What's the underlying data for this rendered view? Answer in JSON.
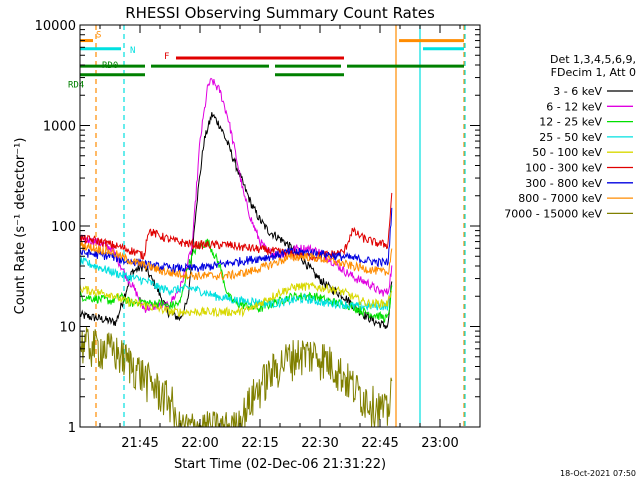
{
  "chart_data": {
    "type": "line",
    "title": "RHESSI Observing Summary Count Rates",
    "xlabel": "Start Time (02-Dec-06 21:31:22)",
    "ylabel": "Count Rate (s⁻¹ detector⁻¹)",
    "scale_y": "log",
    "ylim": [
      1,
      10000
    ],
    "xlim_minutes_after_2130": [
      0,
      100
    ],
    "x_ticks": [
      {
        "t": 15,
        "label": "21:45"
      },
      {
        "t": 30,
        "label": "22:00"
      },
      {
        "t": 45,
        "label": "22:15"
      },
      {
        "t": 60,
        "label": "22:30"
      },
      {
        "t": 75,
        "label": "22:45"
      },
      {
        "t": 90,
        "label": "23:00"
      }
    ],
    "y_ticks": [
      {
        "v": 1,
        "label": "1"
      },
      {
        "v": 10,
        "label": "10"
      },
      {
        "v": 100,
        "label": "100"
      },
      {
        "v": 1000,
        "label": "1000"
      },
      {
        "v": 10000,
        "label": "10000"
      }
    ],
    "legend_header": [
      "Det 1,3,4,5,6,9,",
      "FDecim 1, Att 0"
    ],
    "legend_position": "right",
    "series": [
      {
        "name": "3 - 6 keV",
        "color": "#000000",
        "points": [
          [
            0,
            13
          ],
          [
            5,
            12
          ],
          [
            9,
            11
          ],
          [
            13,
            35
          ],
          [
            16,
            40
          ],
          [
            19,
            25
          ],
          [
            22,
            14
          ],
          [
            25,
            12
          ],
          [
            27,
            18
          ],
          [
            29,
            150
          ],
          [
            31,
            700
          ],
          [
            33,
            1300
          ],
          [
            35,
            1000
          ],
          [
            37,
            650
          ],
          [
            39,
            400
          ],
          [
            41,
            250
          ],
          [
            43,
            160
          ],
          [
            45,
            115
          ],
          [
            47,
            90
          ],
          [
            49,
            80
          ],
          [
            51,
            70
          ],
          [
            53,
            60
          ],
          [
            56,
            45
          ],
          [
            59,
            32
          ],
          [
            62,
            25
          ],
          [
            66,
            20
          ],
          [
            70,
            14
          ],
          [
            74,
            11
          ],
          [
            77,
            10
          ],
          [
            78,
            30
          ]
        ]
      },
      {
        "name": "6 - 12 keV",
        "color": "#e000e0",
        "points": [
          [
            0,
            75
          ],
          [
            4,
            70
          ],
          [
            8,
            60
          ],
          [
            11,
            35
          ],
          [
            14,
            22
          ],
          [
            16,
            15
          ],
          [
            19,
            16
          ],
          [
            22,
            16
          ],
          [
            25,
            24
          ],
          [
            28,
            60
          ],
          [
            30,
            700
          ],
          [
            32,
            2500
          ],
          [
            33,
            2800
          ],
          [
            35,
            2200
          ],
          [
            37,
            1200
          ],
          [
            39,
            500
          ],
          [
            41,
            200
          ],
          [
            43,
            110
          ],
          [
            45,
            70
          ],
          [
            47,
            55
          ],
          [
            50,
            52
          ],
          [
            54,
            60
          ],
          [
            57,
            60
          ],
          [
            60,
            55
          ],
          [
            63,
            45
          ],
          [
            66,
            36
          ],
          [
            69,
            30
          ],
          [
            72,
            27
          ],
          [
            75,
            22
          ],
          [
            77,
            22
          ],
          [
            78,
            40
          ]
        ]
      },
      {
        "name": "12 - 25 keV",
        "color": "#00e000",
        "points": [
          [
            0,
            20
          ],
          [
            4,
            19
          ],
          [
            8,
            18
          ],
          [
            10,
            20
          ],
          [
            13,
            17
          ],
          [
            15,
            18
          ],
          [
            17,
            17
          ],
          [
            20,
            17
          ],
          [
            22,
            16
          ],
          [
            25,
            17
          ],
          [
            27,
            40
          ],
          [
            29,
            60
          ],
          [
            32,
            70
          ],
          [
            35,
            40
          ],
          [
            37,
            20
          ],
          [
            39,
            17
          ],
          [
            42,
            16
          ],
          [
            45,
            15
          ],
          [
            48,
            17
          ],
          [
            50,
            18
          ],
          [
            53,
            20
          ],
          [
            56,
            20
          ],
          [
            59,
            20
          ],
          [
            62,
            18
          ],
          [
            65,
            17
          ],
          [
            68,
            16
          ],
          [
            71,
            14
          ],
          [
            74,
            13
          ],
          [
            77,
            12
          ],
          [
            78,
            25
          ]
        ]
      },
      {
        "name": "25 - 50 keV",
        "color": "#00e0e0",
        "points": [
          [
            0,
            45
          ],
          [
            4,
            40
          ],
          [
            8,
            35
          ],
          [
            11,
            32
          ],
          [
            14,
            30
          ],
          [
            17,
            28
          ],
          [
            20,
            24
          ],
          [
            23,
            23
          ],
          [
            26,
            24
          ],
          [
            28,
            24
          ],
          [
            31,
            22
          ],
          [
            34,
            20
          ],
          [
            37,
            19
          ],
          [
            40,
            18
          ],
          [
            43,
            18
          ],
          [
            46,
            17
          ],
          [
            49,
            17
          ],
          [
            52,
            18
          ],
          [
            56,
            19
          ],
          [
            59,
            18
          ],
          [
            62,
            17
          ],
          [
            65,
            17
          ],
          [
            68,
            16
          ],
          [
            71,
            16
          ],
          [
            74,
            16
          ],
          [
            77,
            16
          ],
          [
            78,
            25
          ]
        ]
      },
      {
        "name": "50 - 100 keV",
        "color": "#d8d800",
        "points": [
          [
            0,
            24
          ],
          [
            4,
            22
          ],
          [
            8,
            21
          ],
          [
            11,
            18
          ],
          [
            14,
            17
          ],
          [
            17,
            16
          ],
          [
            20,
            15
          ],
          [
            23,
            14
          ],
          [
            26,
            14
          ],
          [
            29,
            14
          ],
          [
            33,
            14
          ],
          [
            37,
            14
          ],
          [
            40,
            14
          ],
          [
            43,
            15
          ],
          [
            46,
            18
          ],
          [
            50,
            22
          ],
          [
            54,
            25
          ],
          [
            58,
            25
          ],
          [
            62,
            24
          ],
          [
            66,
            22
          ],
          [
            69,
            19
          ],
          [
            72,
            17
          ],
          [
            75,
            17
          ],
          [
            77,
            17
          ],
          [
            78,
            25
          ]
        ]
      },
      {
        "name": "100 - 300 keV",
        "color": "#e00000",
        "points": [
          [
            0,
            75
          ],
          [
            4,
            72
          ],
          [
            8,
            65
          ],
          [
            11,
            60
          ],
          [
            14,
            55
          ],
          [
            16,
            50
          ],
          [
            17,
            90
          ],
          [
            20,
            80
          ],
          [
            23,
            72
          ],
          [
            26,
            68
          ],
          [
            29,
            65
          ],
          [
            33,
            65
          ],
          [
            37,
            65
          ],
          [
            40,
            62
          ],
          [
            43,
            60
          ],
          [
            46,
            58
          ],
          [
            50,
            55
          ],
          [
            54,
            52
          ],
          [
            58,
            50
          ],
          [
            62,
            52
          ],
          [
            66,
            55
          ],
          [
            68,
            90
          ],
          [
            71,
            75
          ],
          [
            74,
            68
          ],
          [
            77,
            65
          ],
          [
            78,
            230
          ]
        ]
      },
      {
        "name": "300 - 800 keV",
        "color": "#0000e0",
        "points": [
          [
            0,
            55
          ],
          [
            4,
            52
          ],
          [
            8,
            50
          ],
          [
            11,
            45
          ],
          [
            14,
            44
          ],
          [
            16,
            42
          ],
          [
            18,
            40
          ],
          [
            21,
            39
          ],
          [
            24,
            38
          ],
          [
            27,
            38
          ],
          [
            30,
            38
          ],
          [
            33,
            40
          ],
          [
            36,
            42
          ],
          [
            39,
            44
          ],
          [
            42,
            46
          ],
          [
            45,
            48
          ],
          [
            48,
            50
          ],
          [
            52,
            55
          ],
          [
            56,
            55
          ],
          [
            59,
            54
          ],
          [
            62,
            52
          ],
          [
            65,
            50
          ],
          [
            68,
            48
          ],
          [
            71,
            46
          ],
          [
            74,
            44
          ],
          [
            77,
            43
          ],
          [
            78,
            150
          ]
        ]
      },
      {
        "name": "800 - 7000 keV",
        "color": "#ff8c00",
        "points": [
          [
            0,
            65
          ],
          [
            4,
            60
          ],
          [
            8,
            55
          ],
          [
            11,
            48
          ],
          [
            14,
            43
          ],
          [
            17,
            40
          ],
          [
            20,
            36
          ],
          [
            23,
            34
          ],
          [
            26,
            33
          ],
          [
            29,
            32
          ],
          [
            32,
            32
          ],
          [
            36,
            32
          ],
          [
            39,
            33
          ],
          [
            42,
            35
          ],
          [
            45,
            38
          ],
          [
            48,
            42
          ],
          [
            52,
            48
          ],
          [
            56,
            50
          ],
          [
            59,
            48
          ],
          [
            62,
            46
          ],
          [
            65,
            43
          ],
          [
            68,
            40
          ],
          [
            71,
            38
          ],
          [
            74,
            36
          ],
          [
            77,
            34
          ],
          [
            78,
            60
          ]
        ]
      },
      {
        "name": "7000 - 15000 keV",
        "color": "#808000",
        "points": [
          [
            0,
            7
          ],
          [
            4,
            6.5
          ],
          [
            8,
            6
          ],
          [
            11,
            5
          ],
          [
            14,
            4
          ],
          [
            17,
            3
          ],
          [
            20,
            2.3
          ],
          [
            23,
            1.8
          ],
          [
            24,
            1.0
          ],
          [
            27,
            1.0
          ],
          [
            31,
            1.0
          ],
          [
            35,
            1.0
          ],
          [
            39,
            1.0
          ],
          [
            41,
            1.4
          ],
          [
            43,
            2
          ],
          [
            46,
            3
          ],
          [
            49,
            4
          ],
          [
            52,
            5
          ],
          [
            55,
            5.5
          ],
          [
            58,
            5.5
          ],
          [
            61,
            5
          ],
          [
            64,
            4
          ],
          [
            67,
            3
          ],
          [
            70,
            2.2
          ],
          [
            73,
            1.8
          ],
          [
            76,
            1.5
          ],
          [
            77,
            1.4
          ],
          [
            78,
            3.5
          ]
        ]
      }
    ],
    "flag_bars": [
      {
        "label": "S",
        "color": "#ff8c00",
        "value": 7000,
        "segments": [
          [
            0,
            4
          ],
          [
            79,
            96
          ]
        ]
      },
      {
        "label": "N",
        "color": "#00e0e0",
        "value": 5800,
        "segments": [
          [
            0,
            11
          ],
          [
            85,
            96
          ]
        ]
      },
      {
        "label": "F",
        "color": "#e00000",
        "value": 4700,
        "segments": [
          [
            24,
            66
          ]
        ]
      },
      {
        "label": "RD0",
        "color": "#008000",
        "value": 3900,
        "segments": [
          [
            0,
            17
          ],
          [
            17,
            48
          ],
          [
            48,
            66
          ],
          [
            66,
            96
          ]
        ]
      },
      {
        "label": "RD4",
        "color": "#008000",
        "value": 3200,
        "segments": [
          [
            0,
            17
          ],
          [
            48,
            66
          ]
        ]
      }
    ],
    "vertical_markers": [
      {
        "t": 4,
        "color": "#ff8c00",
        "style": "dashed"
      },
      {
        "t": 11,
        "color": "#00e0e0",
        "style": "dashed"
      },
      {
        "t": 79,
        "color": "#ff8c00",
        "style": "solid"
      },
      {
        "t": 85,
        "color": "#00e0e0",
        "style": "solid"
      },
      {
        "t": 96,
        "color": "#ff8c00",
        "style": "dashed"
      },
      {
        "t": 96,
        "color": "#00e0e0",
        "style": "dashed"
      }
    ],
    "footer_date": "18-Oct-2021 07:50"
  }
}
